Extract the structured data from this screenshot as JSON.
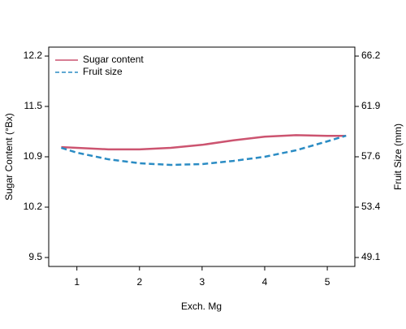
{
  "chart_data": {
    "type": "line",
    "xlabel": "Exch. Mg",
    "ylabel": "Sugar Content (°Bx)",
    "y2label": "Fruit Size (mm)",
    "x": [
      0.75,
      1,
      1.5,
      2,
      2.5,
      3,
      3.5,
      4,
      4.5,
      5,
      5.3
    ],
    "series": [
      {
        "name": "Sugar content",
        "color": "#cc5470",
        "dash": false,
        "values": [
          10.98,
          10.97,
          10.95,
          10.95,
          10.97,
          11.01,
          11.07,
          11.12,
          11.14,
          11.13,
          11.13
        ]
      },
      {
        "name": "Fruit size",
        "color": "#2b8cc4",
        "dash": true,
        "axis": "y2",
        "values": [
          58.41,
          58.0,
          57.44,
          57.1,
          56.96,
          57.03,
          57.3,
          57.65,
          58.2,
          58.96,
          59.44
        ]
      }
    ],
    "xlim": [
      0.55,
      5.44
    ],
    "xticks": [
      1,
      2,
      3,
      4,
      5
    ],
    "ylim": [
      9.38,
      12.32
    ],
    "yticks": [
      9.5,
      {
        "value": 10.175,
        "label": "10.2"
      },
      {
        "value": 10.85,
        "label": "10.9"
      },
      {
        "value": 11.525,
        "label": "11.5"
      },
      12.2
    ],
    "y2lim": [
      48.34,
      66.96
    ],
    "y2ticks": [
      49.1,
      {
        "value": 53.375,
        "label": "53.4"
      },
      {
        "value": 57.65,
        "label": "57.6"
      },
      {
        "value": 61.925,
        "label": "61.9"
      },
      66.2
    ],
    "legend": "top-left"
  }
}
